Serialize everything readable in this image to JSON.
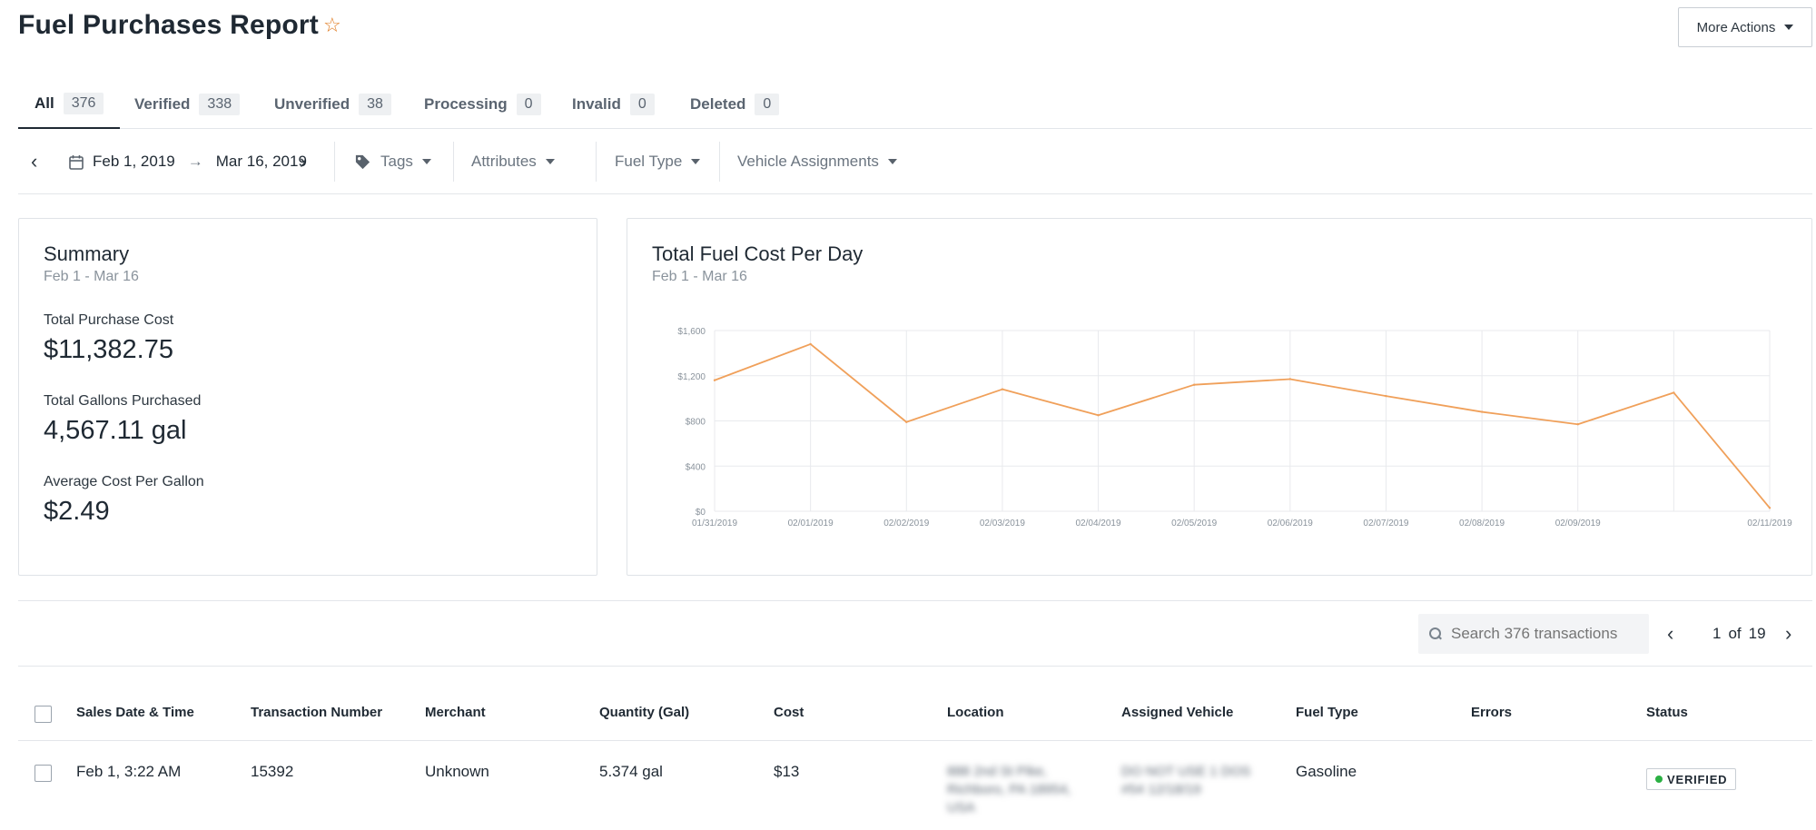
{
  "header": {
    "title": "Fuel Purchases Report",
    "more_actions_label": "More Actions"
  },
  "tabs": [
    {
      "label": "All",
      "count": "376"
    },
    {
      "label": "Verified",
      "count": "338"
    },
    {
      "label": "Unverified",
      "count": "38"
    },
    {
      "label": "Processing",
      "count": "0"
    },
    {
      "label": "Invalid",
      "count": "0"
    },
    {
      "label": "Deleted",
      "count": "0"
    }
  ],
  "filters": {
    "date_start": "Feb 1, 2019",
    "date_end": "Mar 16, 2019",
    "tags": "Tags",
    "attributes": "Attributes",
    "fuel_type": "Fuel Type",
    "vehicle_assignments": "Vehicle Assignments"
  },
  "summary": {
    "title": "Summary",
    "subtitle": "Feb 1 - Mar 16",
    "metrics": [
      {
        "label": "Total Purchase Cost",
        "value": "$11,382.75"
      },
      {
        "label": "Total Gallons Purchased",
        "value": "4,567.11 gal"
      },
      {
        "label": "Average Cost Per Gallon",
        "value": "$2.49"
      }
    ]
  },
  "chart_data": {
    "type": "line",
    "title": "Total Fuel Cost Per Day",
    "subtitle": "Feb 1 - Mar 16",
    "xlabel": "",
    "ylabel": "",
    "x_tick_labels": [
      "01/31/2019",
      "02/01/2019",
      "02/02/2019",
      "02/03/2019",
      "02/04/2019",
      "02/05/2019",
      "02/06/2019",
      "02/07/2019",
      "02/08/2019",
      "02/09/2019",
      "02/11/2019"
    ],
    "x_tick_positions": [
      0,
      1,
      2,
      3,
      4,
      5,
      6,
      7,
      8,
      9,
      11
    ],
    "y_tick_labels": [
      "$0",
      "$400",
      "$800",
      "$1,200",
      "$1,600"
    ],
    "y_ticks": [
      0,
      400,
      800,
      1200,
      1600
    ],
    "ylim": [
      0,
      1600
    ],
    "xlim": [
      0,
      11
    ],
    "grid": true,
    "color": "#f0a05a",
    "series": [
      {
        "x": [
          0,
          1,
          2,
          3,
          4,
          5,
          6,
          7,
          8,
          9,
          10,
          11
        ],
        "values": [
          1160,
          1480,
          790,
          1080,
          850,
          1120,
          1170,
          1020,
          880,
          770,
          1050,
          30
        ]
      }
    ]
  },
  "toolbar": {
    "search_placeholder": "Search 376 transactions",
    "page_current": "1",
    "page_of": "of",
    "page_total": "19"
  },
  "table": {
    "columns": [
      "Sales Date & Time",
      "Transaction Number",
      "Merchant",
      "Quantity (Gal)",
      "Cost",
      "Location",
      "Assigned Vehicle",
      "Fuel Type",
      "Errors",
      "Status"
    ],
    "rows": [
      {
        "date": "Feb 1, 3:22 AM",
        "transaction": "15392",
        "merchant": "Unknown",
        "quantity": "5.374 gal",
        "cost": "$13",
        "location_line1": "888 2nd St Pike,",
        "location_line2": "Richboro, PA 18954,",
        "location_line3": "USA",
        "vehicle_line1": "DO NOT USE 1 DOS",
        "vehicle_line2": "#54 12/18/19",
        "fuel_type": "Gasoline",
        "errors": "",
        "status": "VERIFIED"
      }
    ]
  }
}
